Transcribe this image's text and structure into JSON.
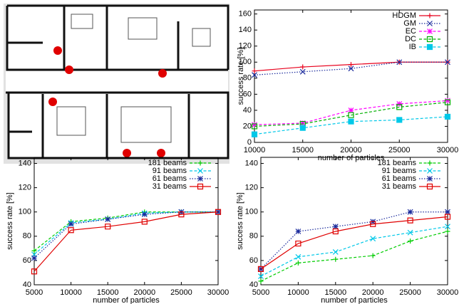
{
  "chart_data": [
    {
      "type": "line",
      "xlabel": "number of particles",
      "ylabel": "success rate [%]",
      "x": [
        10000,
        15000,
        20000,
        25000,
        30000
      ],
      "xlim": [
        10000,
        30000
      ],
      "xticks": [
        10000,
        15000,
        20000,
        25000,
        30000
      ],
      "ylim": [
        0,
        165
      ],
      "yticks": [
        0,
        20,
        40,
        60,
        80,
        100,
        120,
        140,
        160
      ],
      "legend": "top-right",
      "series": [
        {
          "name": "HDGM",
          "color": "#e8001c",
          "marker": "plus",
          "dash": "solid",
          "values": [
            89,
            94,
            97,
            100,
            100
          ]
        },
        {
          "name": "GM",
          "color": "#1a2a9c",
          "marker": "cross",
          "dash": "dotted",
          "values": [
            84,
            88,
            92,
            100,
            100
          ]
        },
        {
          "name": "EC",
          "color": "#ff00ff",
          "marker": "star",
          "dash": "dashed",
          "values": [
            22,
            24,
            40,
            48,
            52
          ]
        },
        {
          "name": "DC",
          "color": "#00b000",
          "marker": "square",
          "dash": "dashed",
          "values": [
            20,
            23,
            34,
            44,
            50
          ]
        },
        {
          "name": "IB",
          "color": "#00c8e8",
          "marker": "filled-square",
          "dash": "dashed",
          "values": [
            10,
            18,
            26,
            28,
            32
          ]
        }
      ]
    },
    {
      "type": "line",
      "xlabel": "number of particles",
      "ylabel": "success rate [%]",
      "x": [
        5000,
        10000,
        15000,
        20000,
        25000,
        30000
      ],
      "xlim": [
        5000,
        30000
      ],
      "xticks": [
        5000,
        10000,
        15000,
        20000,
        25000,
        30000
      ],
      "ylim": [
        40,
        145
      ],
      "yticks": [
        40,
        60,
        80,
        100,
        120,
        140
      ],
      "legend": "top-right",
      "series": [
        {
          "name": "181 beams",
          "color": "#00cc00",
          "marker": "plus",
          "dash": "dashed",
          "values": [
            68,
            92,
            95,
            100,
            100,
            100
          ]
        },
        {
          "name": "91 beams",
          "color": "#00c8e8",
          "marker": "cross",
          "dash": "dashed",
          "values": [
            65,
            91,
            94,
            99,
            100,
            100
          ]
        },
        {
          "name": "61 beams",
          "color": "#1a2a9c",
          "marker": "star",
          "dash": "dotted",
          "values": [
            62,
            90,
            94,
            98,
            100,
            100
          ]
        },
        {
          "name": "31 beams",
          "color": "#e00000",
          "marker": "square",
          "dash": "solid",
          "values": [
            51,
            85,
            88,
            92,
            98,
            100
          ]
        }
      ]
    },
    {
      "type": "line",
      "xlabel": "number of particles",
      "ylabel": "success rate [%]",
      "x": [
        5000,
        10000,
        15000,
        20000,
        25000,
        30000
      ],
      "xlim": [
        5000,
        30000
      ],
      "xticks": [
        5000,
        10000,
        15000,
        20000,
        25000,
        30000
      ],
      "ylim": [
        40,
        145
      ],
      "yticks": [
        40,
        60,
        80,
        100,
        120,
        140
      ],
      "legend": "top-right",
      "series": [
        {
          "name": "181 beams",
          "color": "#00cc00",
          "marker": "plus",
          "dash": "dashed",
          "values": [
            43,
            58,
            61,
            64,
            76,
            84
          ]
        },
        {
          "name": "91 beams",
          "color": "#00c8e8",
          "marker": "cross",
          "dash": "dashed",
          "values": [
            47,
            63,
            67,
            78,
            83,
            88
          ]
        },
        {
          "name": "61 beams",
          "color": "#1a2a9c",
          "marker": "star",
          "dash": "dotted",
          "values": [
            53,
            84,
            88,
            92,
            100,
            100
          ]
        },
        {
          "name": "31 beams",
          "color": "#e00000",
          "marker": "square",
          "dash": "solid",
          "values": [
            53,
            74,
            84,
            90,
            93,
            96
          ]
        }
      ]
    }
  ]
}
